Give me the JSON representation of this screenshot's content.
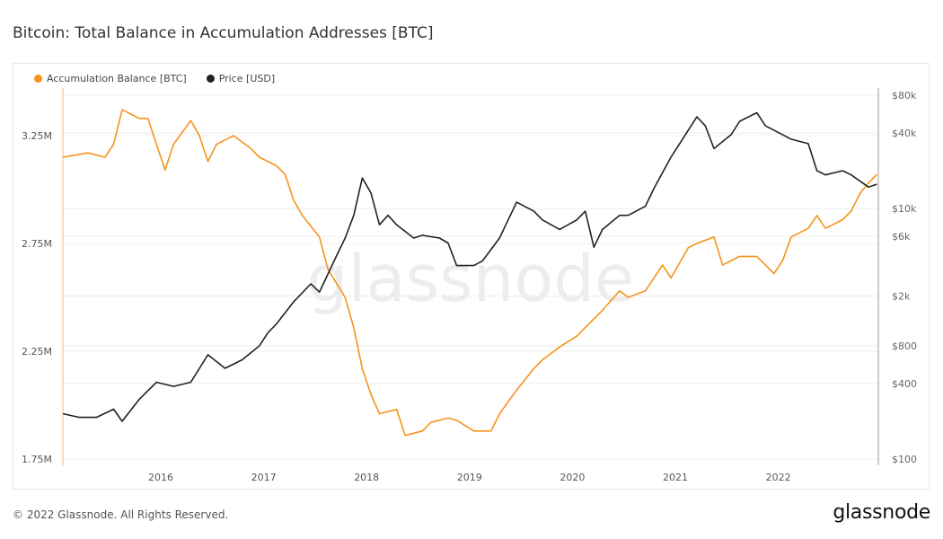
{
  "title": "Bitcoin: Total Balance in Accumulation Addresses [BTC]",
  "footer": "© 2022 Glassnode. All Rights Reserved.",
  "logo": "glassnode",
  "watermark": "glassnode",
  "chart_data": {
    "type": "line",
    "title": "Bitcoin: Total Balance in Accumulation Addresses [BTC]",
    "legend_placement": "top-left",
    "grid": true,
    "x_ticks": [
      "2016",
      "2017",
      "2018",
      "2019",
      "2020",
      "2021",
      "2022"
    ],
    "xlim": [
      "2015-01",
      "2022-12"
    ],
    "y_left": {
      "ticks": [
        "3.25M",
        "2.75M",
        "2.25M",
        "1.75M"
      ],
      "tick_values": [
        3.25,
        2.75,
        2.25,
        1.75
      ],
      "unit": "M BTC",
      "range": [
        1.72,
        3.5
      ]
    },
    "y_right": {
      "scale": "log",
      "ticks": [
        "$80k",
        "$40k",
        "$10k",
        "$6k",
        "$2k",
        "$800",
        "$400",
        "$100"
      ],
      "tick_values": [
        80000,
        40000,
        10000,
        6000,
        2000,
        800,
        400,
        100
      ],
      "range": [
        100,
        80000
      ]
    },
    "series": [
      {
        "name": "Accumulation Balance [BTC]",
        "color": "#f7931a",
        "axis": "left",
        "unit": "M BTC",
        "points": [
          [
            "2015-01",
            3.15
          ],
          [
            "2015-04",
            3.17
          ],
          [
            "2015-06",
            3.15
          ],
          [
            "2015-07",
            3.21
          ],
          [
            "2015-08",
            3.37
          ],
          [
            "2015-10",
            3.33
          ],
          [
            "2015-11",
            3.33
          ],
          [
            "2015-12",
            3.21
          ],
          [
            "2016-01",
            3.09
          ],
          [
            "2016-02",
            3.21
          ],
          [
            "2016-04",
            3.32
          ],
          [
            "2016-05",
            3.25
          ],
          [
            "2016-06",
            3.13
          ],
          [
            "2016-07",
            3.21
          ],
          [
            "2016-09",
            3.25
          ],
          [
            "2016-11",
            3.19
          ],
          [
            "2016-12",
            3.15
          ],
          [
            "2017-02",
            3.11
          ],
          [
            "2017-03",
            3.07
          ],
          [
            "2017-04",
            2.95
          ],
          [
            "2017-05",
            2.88
          ],
          [
            "2017-07",
            2.78
          ],
          [
            "2017-08",
            2.63
          ],
          [
            "2017-10",
            2.5
          ],
          [
            "2017-11",
            2.36
          ],
          [
            "2017-12",
            2.17
          ],
          [
            "2018-01",
            2.05
          ],
          [
            "2018-02",
            1.96
          ],
          [
            "2018-04",
            1.98
          ],
          [
            "2018-05",
            1.86
          ],
          [
            "2018-07",
            1.88
          ],
          [
            "2018-08",
            1.92
          ],
          [
            "2018-10",
            1.94
          ],
          [
            "2018-11",
            1.93
          ],
          [
            "2019-01",
            1.88
          ],
          [
            "2019-03",
            1.88
          ],
          [
            "2019-04",
            1.96
          ],
          [
            "2019-06",
            2.07
          ],
          [
            "2019-08",
            2.17
          ],
          [
            "2019-09",
            2.21
          ],
          [
            "2019-11",
            2.27
          ],
          [
            "2020-01",
            2.32
          ],
          [
            "2020-02",
            2.36
          ],
          [
            "2020-04",
            2.44
          ],
          [
            "2020-06",
            2.53
          ],
          [
            "2020-07",
            2.5
          ],
          [
            "2020-09",
            2.53
          ],
          [
            "2020-10",
            2.59
          ],
          [
            "2020-11",
            2.65
          ],
          [
            "2020-12",
            2.59
          ],
          [
            "2021-02",
            2.73
          ],
          [
            "2021-03",
            2.75
          ],
          [
            "2021-05",
            2.78
          ],
          [
            "2021-06",
            2.65
          ],
          [
            "2021-08",
            2.69
          ],
          [
            "2021-10",
            2.69
          ],
          [
            "2021-12",
            2.61
          ],
          [
            "2022-01",
            2.67
          ],
          [
            "2022-02",
            2.78
          ],
          [
            "2022-04",
            2.82
          ],
          [
            "2022-05",
            2.88
          ],
          [
            "2022-06",
            2.82
          ],
          [
            "2022-08",
            2.86
          ],
          [
            "2022-09",
            2.9
          ],
          [
            "2022-10",
            2.98
          ],
          [
            "2022-11",
            3.03
          ],
          [
            "2022-12",
            3.07
          ]
        ]
      },
      {
        "name": "Price [USD]",
        "color": "#222222",
        "axis": "right",
        "unit": "USD",
        "points": [
          [
            "2015-01",
            230
          ],
          [
            "2015-03",
            215
          ],
          [
            "2015-05",
            215
          ],
          [
            "2015-07",
            250
          ],
          [
            "2015-08",
            200
          ],
          [
            "2015-10",
            300
          ],
          [
            "2015-12",
            410
          ],
          [
            "2016-02",
            380
          ],
          [
            "2016-04",
            410
          ],
          [
            "2016-06",
            680
          ],
          [
            "2016-08",
            530
          ],
          [
            "2016-10",
            620
          ],
          [
            "2016-12",
            800
          ],
          [
            "2017-01",
            1020
          ],
          [
            "2017-02",
            1200
          ],
          [
            "2017-04",
            1800
          ],
          [
            "2017-06",
            2500
          ],
          [
            "2017-07",
            2150
          ],
          [
            "2017-09",
            4200
          ],
          [
            "2017-10",
            5800
          ],
          [
            "2017-11",
            8800
          ],
          [
            "2017-12",
            17500
          ],
          [
            "2018-01",
            13300
          ],
          [
            "2018-02",
            7400
          ],
          [
            "2018-03",
            8800
          ],
          [
            "2018-04",
            7400
          ],
          [
            "2018-06",
            5800
          ],
          [
            "2018-07",
            6100
          ],
          [
            "2018-09",
            5800
          ],
          [
            "2018-10",
            5300
          ],
          [
            "2018-11",
            3500
          ],
          [
            "2019-01",
            3500
          ],
          [
            "2019-02",
            3800
          ],
          [
            "2019-04",
            5800
          ],
          [
            "2019-05",
            8100
          ],
          [
            "2019-06",
            11200
          ],
          [
            "2019-08",
            9500
          ],
          [
            "2019-09",
            8100
          ],
          [
            "2019-11",
            6800
          ],
          [
            "2020-01",
            8100
          ],
          [
            "2020-02",
            9500
          ],
          [
            "2020-03",
            4900
          ],
          [
            "2020-04",
            6800
          ],
          [
            "2020-06",
            8800
          ],
          [
            "2020-07",
            8800
          ],
          [
            "2020-09",
            10400
          ],
          [
            "2020-10",
            14400
          ],
          [
            "2020-12",
            25700
          ],
          [
            "2021-02",
            42000
          ],
          [
            "2021-03",
            53800
          ],
          [
            "2021-04",
            45600
          ],
          [
            "2021-05",
            30000
          ],
          [
            "2021-07",
            38800
          ],
          [
            "2021-08",
            49600
          ],
          [
            "2021-10",
            58000
          ],
          [
            "2021-11",
            45600
          ],
          [
            "2022-01",
            38800
          ],
          [
            "2022-02",
            35700
          ],
          [
            "2022-04",
            32900
          ],
          [
            "2022-05",
            20000
          ],
          [
            "2022-06",
            18500
          ],
          [
            "2022-08",
            20000
          ],
          [
            "2022-09",
            18500
          ],
          [
            "2022-11",
            14800
          ],
          [
            "2022-12",
            15600
          ]
        ]
      }
    ]
  }
}
